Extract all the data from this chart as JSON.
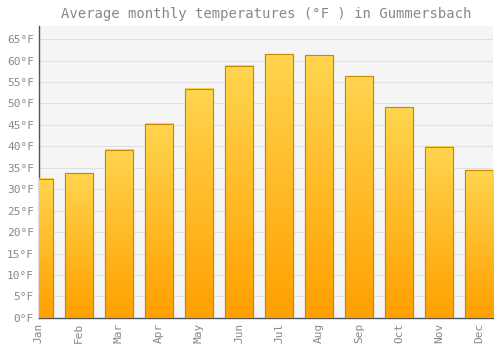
{
  "title": "Average monthly temperatures (°F ) in Gummersbach",
  "months": [
    "Jan",
    "Feb",
    "Mar",
    "Apr",
    "May",
    "Jun",
    "Jul",
    "Aug",
    "Sep",
    "Oct",
    "Nov",
    "Dec"
  ],
  "values": [
    32.5,
    33.8,
    39.2,
    45.3,
    53.4,
    58.8,
    61.5,
    61.3,
    56.3,
    49.1,
    39.9,
    34.5
  ],
  "bar_color_top": "#FFD54F",
  "bar_color_bottom": "#FFA000",
  "bar_edge_color": "#CC8800",
  "background_color": "#FFFFFF",
  "plot_bg_color": "#F5F5F5",
  "grid_color": "#E0E0E0",
  "text_color": "#888888",
  "spine_color": "#555555",
  "ylim": [
    0,
    68
  ],
  "yticks": [
    0,
    5,
    10,
    15,
    20,
    25,
    30,
    35,
    40,
    45,
    50,
    55,
    60,
    65
  ],
  "ytick_labels": [
    "0°F",
    "5°F",
    "10°F",
    "15°F",
    "20°F",
    "25°F",
    "30°F",
    "35°F",
    "40°F",
    "45°F",
    "50°F",
    "55°F",
    "60°F",
    "65°F"
  ],
  "title_fontsize": 10,
  "tick_fontsize": 8,
  "font_family": "monospace"
}
